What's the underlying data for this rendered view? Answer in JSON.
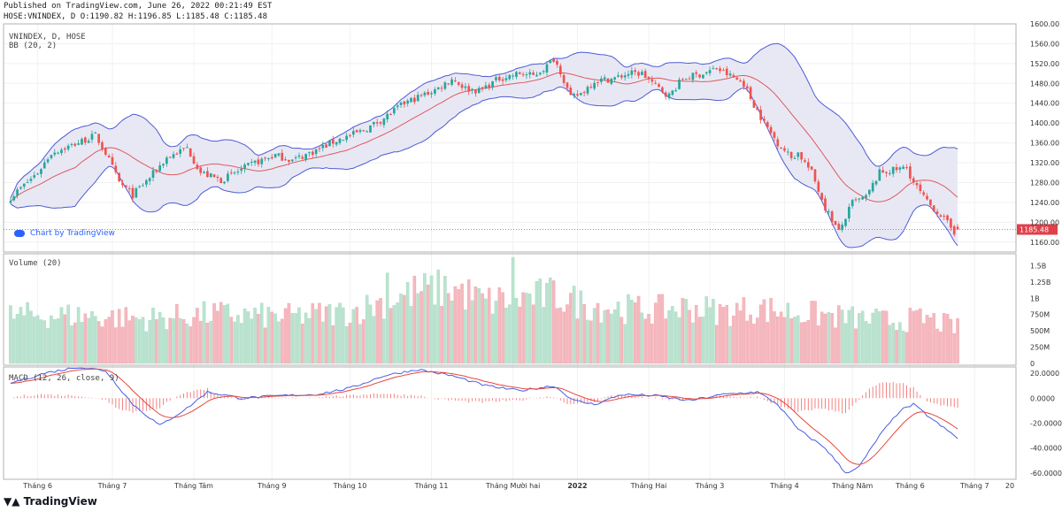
{
  "header": {
    "published": "Published on TradingView.com, June 26, 2022 00:21:49 EST",
    "ohlc_line": "HOSE:VNINDEX, D O:1190.82 H:1196.85 L:1185.48 C:1185.48"
  },
  "panes": {
    "price_title": "VNINDEX, D, HOSE",
    "bb_title": "BB (20, 2)",
    "volume_title": "Volume (20)",
    "macd_title": "MACD (12, 26, close, 9)"
  },
  "brand_badge": "Chart by TradingView",
  "footer_logo": "TradingView",
  "colors": {
    "up": "#26a69a",
    "down": "#ef5350",
    "bb_band": "#4d5bd6",
    "bb_fill": "#e8e8f5",
    "bb_basis": "#e05a5a",
    "vol_up": "#b9e3cf",
    "vol_down": "#f5b8be",
    "macd": "#4a5ee0",
    "signal": "#e8463c",
    "last_price_bg": "#e0404a"
  },
  "chart_data": [
    {
      "type": "candlestick",
      "title": "VNINDEX, D, HOSE",
      "ylim": [
        1140,
        1600
      ],
      "y_ticks": [
        "1600.00",
        "1560.00",
        "1520.00",
        "1480.00",
        "1440.00",
        "1400.00",
        "1360.00",
        "1320.00",
        "1280.00",
        "1240.00",
        "1200.00",
        "1160.00"
      ],
      "last_price": "1185.48",
      "x_labels": [
        "Tháng 6",
        "Tháng 7",
        "Tháng Tám",
        "Tháng 9",
        "Tháng 10",
        "Tháng 11",
        "Tháng Mười hai",
        "2022",
        "Tháng Hai",
        "Tháng 3",
        "Tháng 4",
        "Tháng Năm",
        "Tháng 6",
        "Tháng 7",
        "20"
      ],
      "close_keypoints": [
        [
          0,
          1250
        ],
        [
          8,
          1300
        ],
        [
          12,
          1340
        ],
        [
          18,
          1355
        ],
        [
          25,
          1375
        ],
        [
          28,
          1340
        ],
        [
          32,
          1280
        ],
        [
          36,
          1255
        ],
        [
          41,
          1290
        ],
        [
          46,
          1330
        ],
        [
          52,
          1350
        ],
        [
          56,
          1300
        ],
        [
          62,
          1285
        ],
        [
          72,
          1320
        ],
        [
          78,
          1335
        ],
        [
          83,
          1325
        ],
        [
          90,
          1345
        ],
        [
          96,
          1365
        ],
        [
          104,
          1385
        ],
        [
          110,
          1410
        ],
        [
          116,
          1440
        ],
        [
          121,
          1455
        ],
        [
          126,
          1470
        ],
        [
          130,
          1490
        ],
        [
          134,
          1470
        ],
        [
          138,
          1465
        ],
        [
          144,
          1490
        ],
        [
          150,
          1500
        ],
        [
          154,
          1495
        ],
        [
          158,
          1515
        ],
        [
          160,
          1530
        ],
        [
          162,
          1505
        ],
        [
          165,
          1450
        ],
        [
          168,
          1460
        ],
        [
          172,
          1485
        ],
        [
          178,
          1490
        ],
        [
          182,
          1500
        ],
        [
          186,
          1500
        ],
        [
          190,
          1475
        ],
        [
          194,
          1455
        ],
        [
          198,
          1490
        ],
        [
          204,
          1500
        ],
        [
          208,
          1510
        ],
        [
          212,
          1495
        ],
        [
          216,
          1480
        ],
        [
          218,
          1450
        ],
        [
          222,
          1400
        ],
        [
          226,
          1360
        ],
        [
          230,
          1330
        ],
        [
          232,
          1340
        ],
        [
          236,
          1300
        ],
        [
          240,
          1230
        ],
        [
          244,
          1180
        ],
        [
          248,
          1240
        ],
        [
          252,
          1250
        ],
        [
          256,
          1300
        ],
        [
          260,
          1305
        ],
        [
          264,
          1310
        ],
        [
          266,
          1280
        ],
        [
          270,
          1240
        ],
        [
          274,
          1215
        ],
        [
          278,
          1180
        ],
        [
          279,
          1185.48
        ]
      ]
    },
    {
      "type": "bar",
      "title": "Volume (20)",
      "ylim": [
        0,
        1600000000
      ],
      "y_ticks": [
        "1.5B",
        "1.25B",
        "1B",
        "750M",
        "500M",
        "250M",
        "0"
      ],
      "volume_profile_keypoints": [
        [
          0,
          700
        ],
        [
          20,
          700
        ],
        [
          40,
          650
        ],
        [
          60,
          720
        ],
        [
          80,
          680
        ],
        [
          100,
          750
        ],
        [
          110,
          900
        ],
        [
          120,
          1050
        ],
        [
          130,
          1100
        ],
        [
          140,
          900
        ],
        [
          150,
          950
        ],
        [
          160,
          1000
        ],
        [
          170,
          850
        ],
        [
          180,
          800
        ],
        [
          190,
          780
        ],
        [
          200,
          820
        ],
        [
          210,
          750
        ],
        [
          220,
          800
        ],
        [
          230,
          750
        ],
        [
          240,
          700
        ],
        [
          250,
          650
        ],
        [
          260,
          620
        ],
        [
          270,
          650
        ],
        [
          279,
          520
        ]
      ]
    },
    {
      "type": "line",
      "title": "MACD (12, 26, close, 9)",
      "ylim": [
        -65,
        25
      ],
      "y_ticks": [
        "20.0000",
        "0.0000",
        "-20.0000",
        "-40.0000",
        "-60.0000"
      ],
      "macd_keypoints": [
        [
          0,
          12
        ],
        [
          10,
          20
        ],
        [
          20,
          25
        ],
        [
          28,
          22
        ],
        [
          36,
          -5
        ],
        [
          44,
          -22
        ],
        [
          52,
          -8
        ],
        [
          58,
          5
        ],
        [
          68,
          0
        ],
        [
          80,
          2
        ],
        [
          90,
          3
        ],
        [
          100,
          8
        ],
        [
          110,
          18
        ],
        [
          120,
          23
        ],
        [
          130,
          18
        ],
        [
          140,
          10
        ],
        [
          150,
          6
        ],
        [
          160,
          10
        ],
        [
          166,
          -2
        ],
        [
          172,
          -5
        ],
        [
          180,
          3
        ],
        [
          190,
          2
        ],
        [
          200,
          -2
        ],
        [
          210,
          3
        ],
        [
          220,
          5
        ],
        [
          226,
          -5
        ],
        [
          232,
          -25
        ],
        [
          240,
          -40
        ],
        [
          246,
          -60
        ],
        [
          250,
          -55
        ],
        [
          256,
          -30
        ],
        [
          262,
          -10
        ],
        [
          266,
          -5
        ],
        [
          272,
          -18
        ],
        [
          279,
          -32
        ]
      ]
    }
  ]
}
